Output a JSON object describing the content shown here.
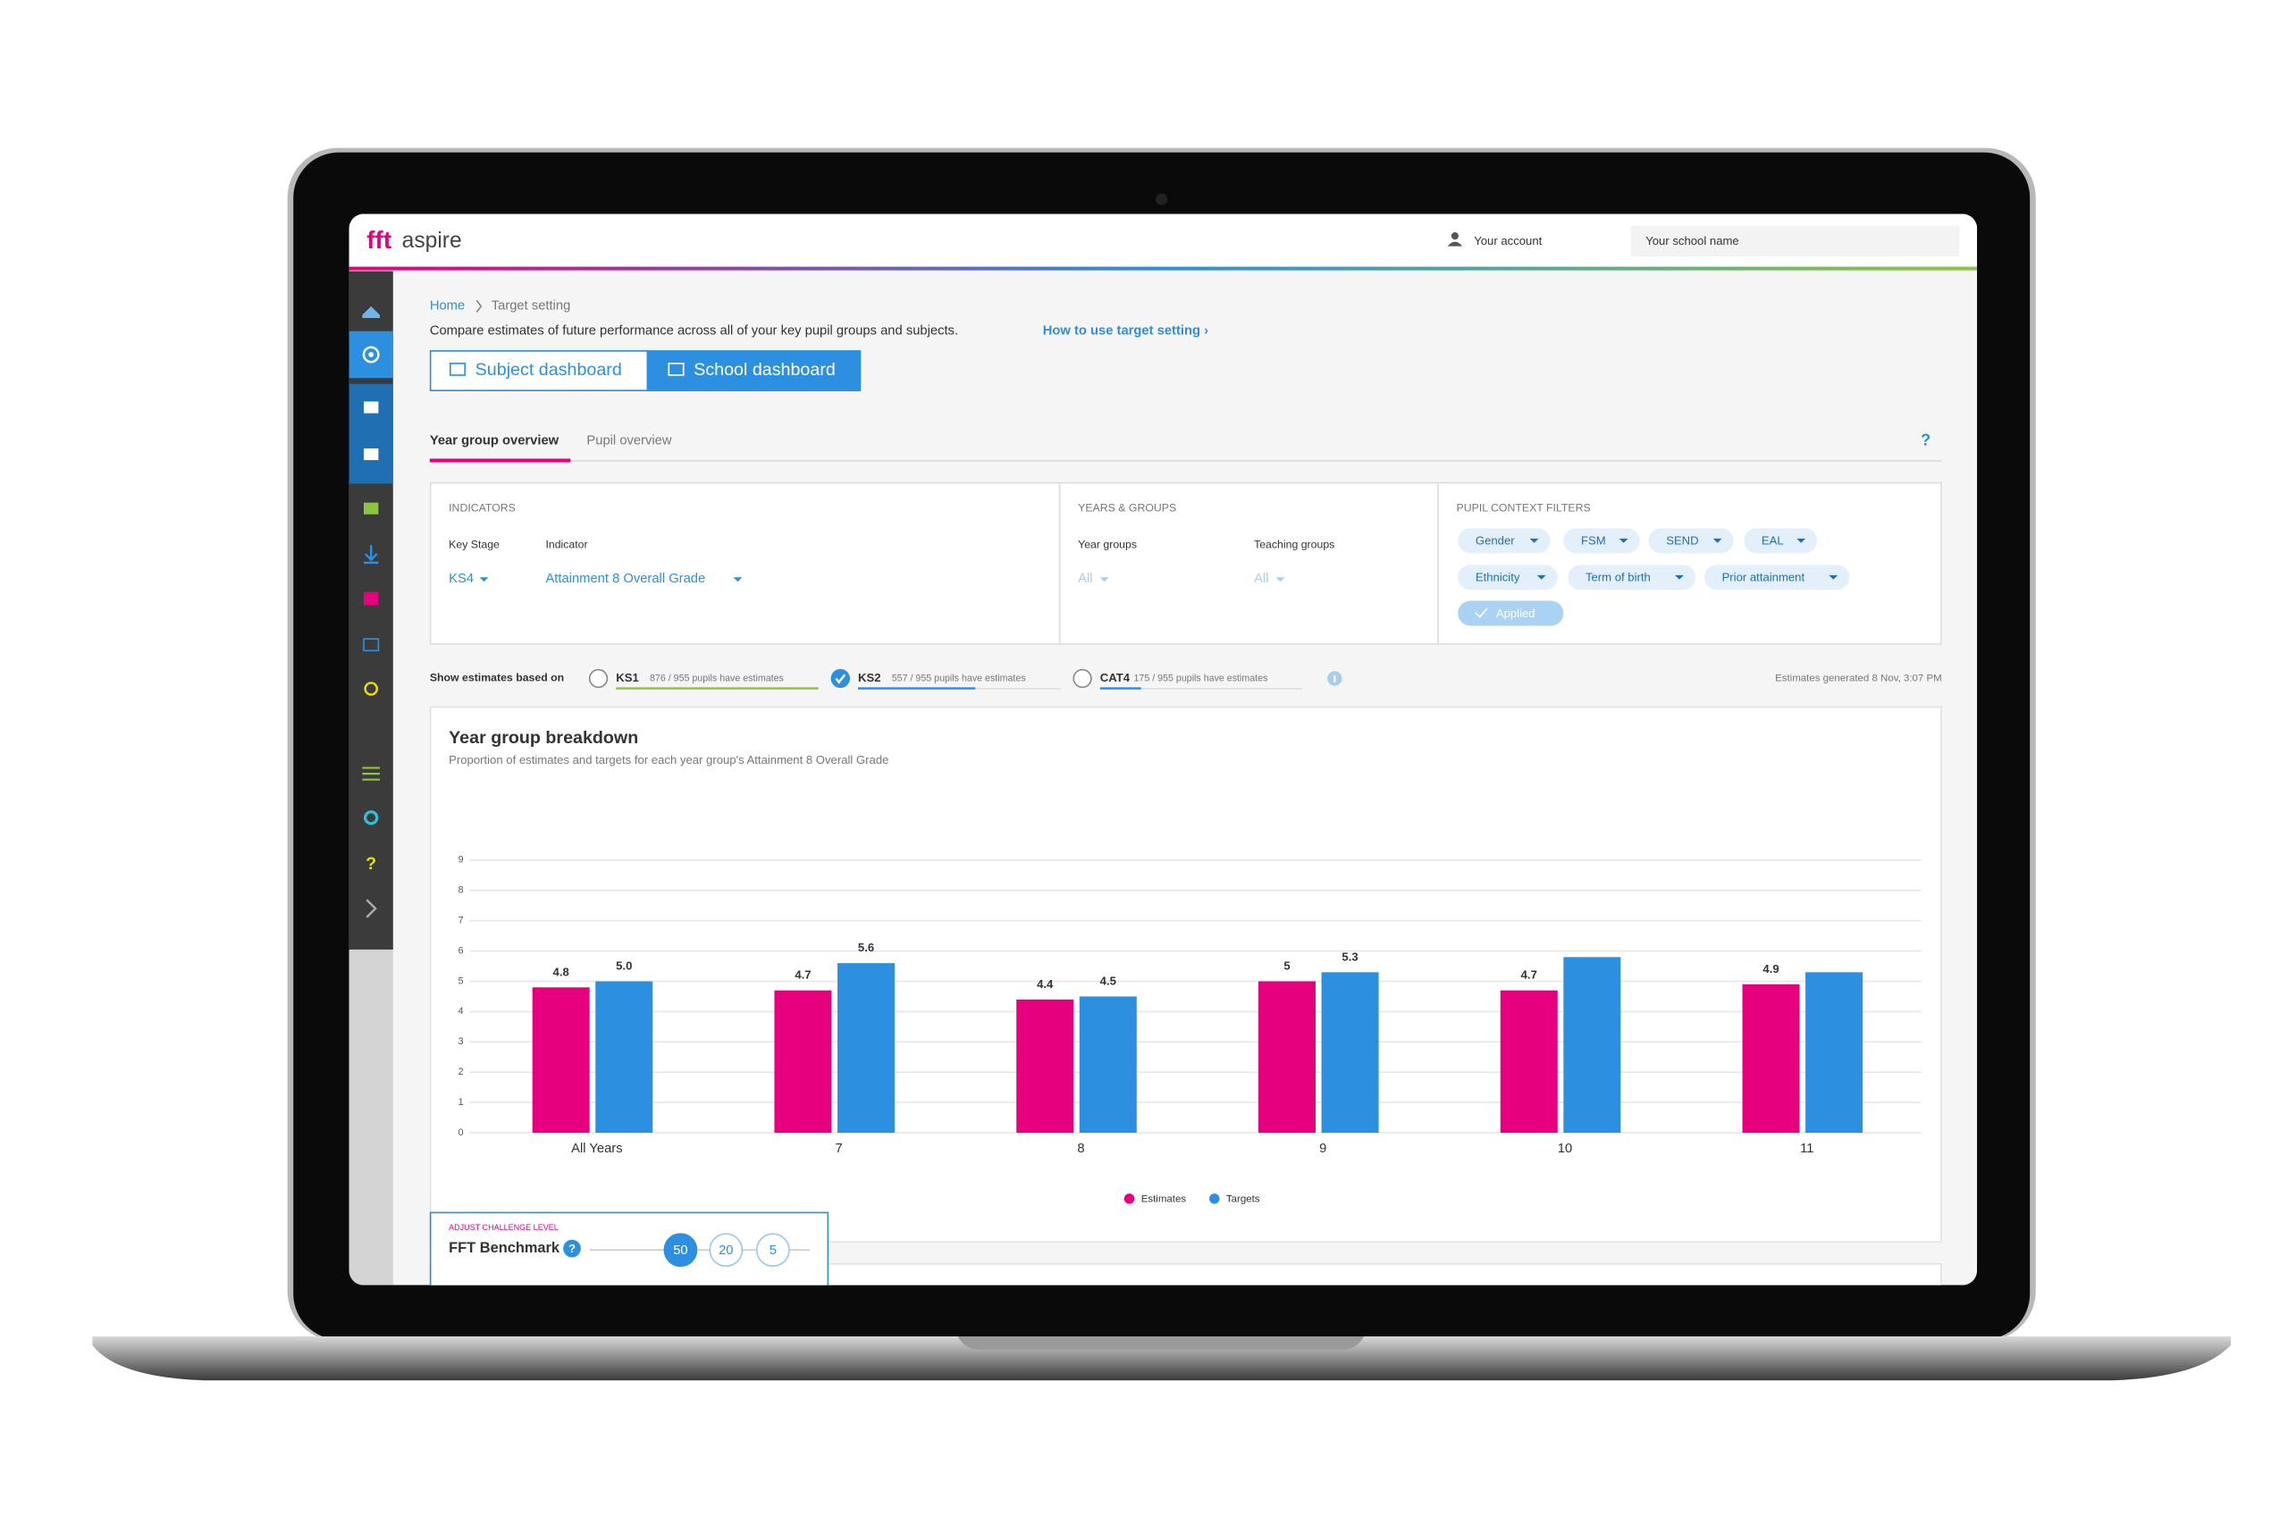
{
  "header": {
    "brand_mark": "fft",
    "brand_name": "aspire",
    "account": "Your account",
    "school": "Your school name"
  },
  "breadcrumb": [
    "Home",
    "Target setting"
  ],
  "intro": "Compare estimates of future performance across all of your key pupil groups and subjects.",
  "intro_link": "How to use target setting ›",
  "dashboards": [
    "Subject dashboard",
    "School dashboard"
  ],
  "tabs": [
    "Year group overview",
    "Pupil overview"
  ],
  "help": "?",
  "indicators": {
    "title": "INDICATORS",
    "labels": [
      "Key Stage",
      "Indicator"
    ],
    "values": [
      "KS4",
      "Attainment 8 Overall Grade"
    ]
  },
  "years_groups": {
    "title": "YEARS & GROUPS",
    "labels": [
      "Year groups",
      "Teaching groups"
    ],
    "values": [
      "All",
      "All"
    ]
  },
  "filters": {
    "title": "PUPIL CONTEXT FILTERS",
    "chips": [
      "Gender",
      "FSM",
      "SEND",
      "EAL",
      "Ethnicity",
      "Term of birth",
      "Prior attainment"
    ],
    "applied": "Applied"
  },
  "estimates": {
    "label": "Show estimates based on",
    "options": [
      {
        "name": "KS1",
        "note": "876 / 955 pupils have estimates"
      },
      {
        "name": "KS2",
        "note": "557 / 955 pupils have estimates"
      },
      {
        "name": "CAT4",
        "note": "175 / 955 pupils have estimates"
      }
    ],
    "generated": "Estimates generated 8 Nov, 3:07 PM"
  },
  "chart_data": {
    "type": "bar",
    "title": "Year group breakdown",
    "subtitle": "Proportion of estimates and targets for each year group's Attainment 8 Overall Grade",
    "categories": [
      "All Years",
      "7",
      "8",
      "9",
      "10",
      "11"
    ],
    "series": [
      {
        "name": "Estimates",
        "color": "#e6007e",
        "values": [
          4.8,
          4.7,
          4.4,
          5,
          4.7,
          4.9
        ]
      },
      {
        "name": "Targets",
        "color": "#2d8fdf",
        "values": [
          5.0,
          5.6,
          4.5,
          5.3,
          5.8,
          5.3
        ],
        "value_labels": [
          "5.0",
          "5.6",
          "4.5",
          "5.3",
          null,
          null
        ]
      }
    ],
    "ylim": [
      0,
      9
    ],
    "yticks": [
      0,
      1,
      2,
      3,
      4,
      5,
      6,
      7,
      8,
      9
    ],
    "grid": true
  },
  "benchmark": {
    "caption": "ADJUST CHALLENGE LEVEL",
    "title": "FFT Benchmark",
    "options": [
      "50",
      "20",
      "5"
    ]
  }
}
